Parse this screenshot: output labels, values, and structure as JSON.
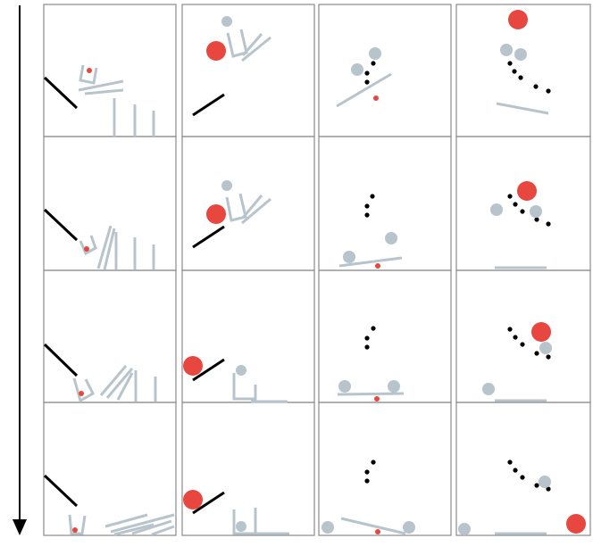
{
  "figure": {
    "layout": {
      "rows": 4,
      "columns": 4
    },
    "time_arrow": {
      "direction": "down"
    },
    "colors": {
      "panel_border": "#8a8a8a",
      "static_bar": "#000000",
      "dynamic_object": "#b8c4cc",
      "red_ball": "#e8473f",
      "black_dot": "#000000",
      "arrow": "#000000"
    }
  }
}
